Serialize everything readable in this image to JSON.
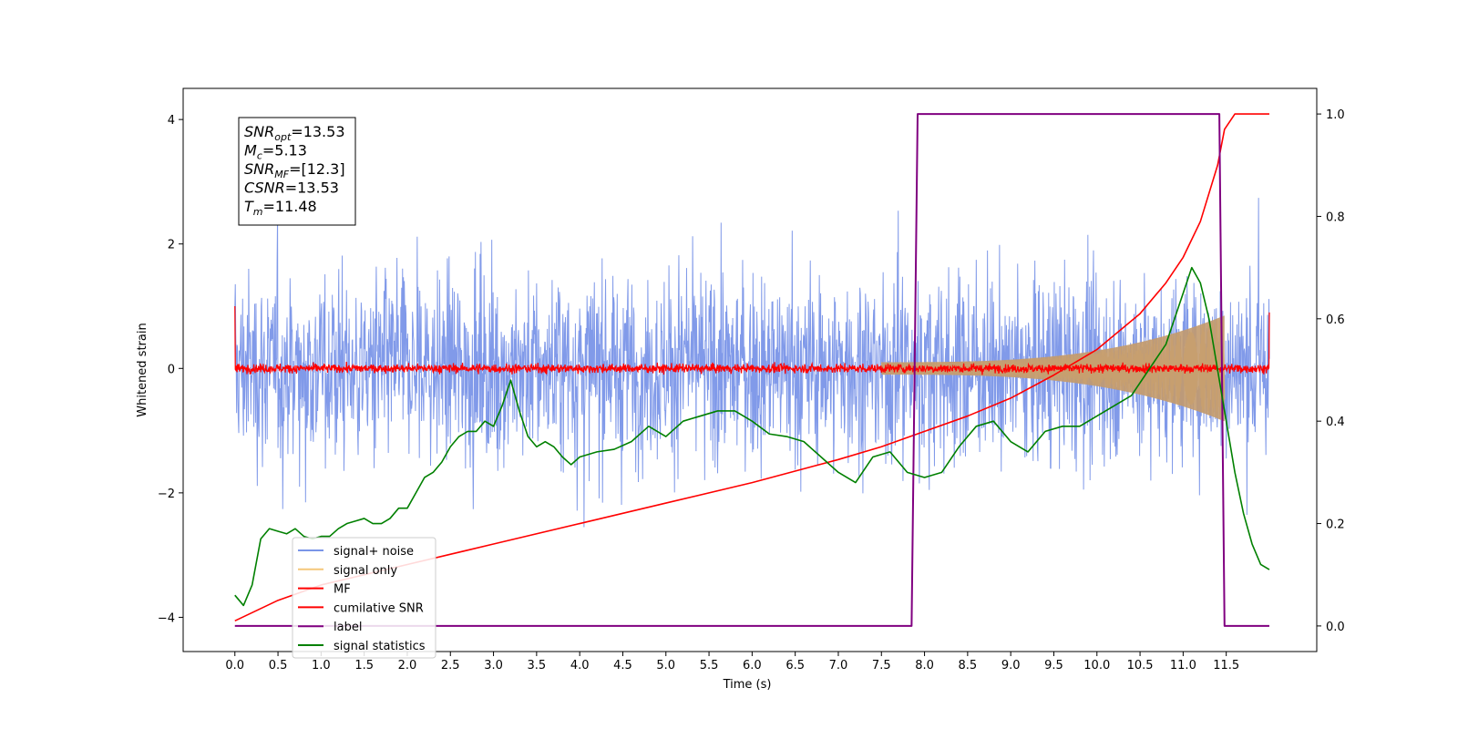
{
  "chart_data": {
    "type": "line",
    "title": "",
    "xlabel": "Time (s)",
    "ylabel": "Whitened strain",
    "xlim": [
      -0.6,
      12.55
    ],
    "ylim": [
      -4.55,
      4.5
    ],
    "y2lim": [
      -0.05,
      1.05
    ],
    "x_ticks": [
      "0.0",
      "0.5",
      "1.0",
      "1.5",
      "2.0",
      "2.5",
      "3.0",
      "3.5",
      "4.0",
      "4.5",
      "5.0",
      "5.5",
      "6.0",
      "6.5",
      "7.0",
      "7.5",
      "8.0",
      "8.5",
      "9.0",
      "9.5",
      "10.0",
      "10.5",
      "11.0",
      "11.5"
    ],
    "y_ticks": [
      "4",
      "2",
      "0",
      "−2",
      "−4"
    ],
    "y2_ticks": [
      "1.0",
      "0.8",
      "0.6",
      "0.4",
      "0.2",
      "0.0"
    ],
    "grid": false,
    "legend_position": "lower-left",
    "info_box": {
      "lines": [
        {
          "sym": "SNR",
          "sub": "opt",
          "value": "=13.53"
        },
        {
          "sym": "M",
          "sub": "c",
          "value": "=5.13"
        },
        {
          "sym": "SNR",
          "sub": "MF",
          "value": "=[12.3]"
        },
        {
          "sym": "CSNR",
          "sub": "",
          "value": "=13.53"
        },
        {
          "sym": "T",
          "sub": "m",
          "value": "=11.48"
        }
      ]
    },
    "series": [
      {
        "name": "signal+ noise",
        "color": "#7a95e8",
        "axis": "left",
        "kind": "noise",
        "x_range": [
          0.0,
          12.0
        ],
        "amplitude_range": [
          -4.1,
          4.1
        ]
      },
      {
        "name": "signal only",
        "color": "#f5c77a",
        "axis": "left",
        "kind": "chirp",
        "x_range": [
          7.5,
          11.48
        ],
        "envelope_start": 0.1,
        "envelope_end": 0.85
      },
      {
        "name": "MF",
        "color": "#ff0000",
        "axis": "left",
        "kind": "noise",
        "x_range": [
          0.0,
          12.0
        ],
        "amplitude_range": [
          -0.15,
          0.15
        ]
      },
      {
        "name": "cumilative SNR",
        "color": "#ff0000",
        "axis": "right",
        "x": [
          0.0,
          0.5,
          1.0,
          1.5,
          2.0,
          3.0,
          4.0,
          5.0,
          6.0,
          7.0,
          7.5,
          8.0,
          8.5,
          9.0,
          9.5,
          10.0,
          10.5,
          10.8,
          11.0,
          11.2,
          11.4,
          11.48,
          11.6,
          12.0
        ],
        "y": [
          0.01,
          0.05,
          0.08,
          0.1,
          0.12,
          0.16,
          0.2,
          0.24,
          0.28,
          0.325,
          0.35,
          0.38,
          0.41,
          0.445,
          0.49,
          0.54,
          0.61,
          0.67,
          0.72,
          0.79,
          0.9,
          0.97,
          1.0,
          1.0
        ]
      },
      {
        "name": "label",
        "color": "#800080",
        "axis": "right",
        "x": [
          0.0,
          7.85,
          7.92,
          11.42,
          11.48,
          12.0
        ],
        "y": [
          0.0,
          0.0,
          1.0,
          1.0,
          0.0,
          0.0
        ]
      },
      {
        "name": "signal statistics",
        "color": "#008000",
        "axis": "right",
        "x": [
          0.0,
          0.1,
          0.2,
          0.3,
          0.4,
          0.5,
          0.6,
          0.7,
          0.8,
          0.9,
          1.0,
          1.1,
          1.2,
          1.3,
          1.4,
          1.5,
          1.6,
          1.7,
          1.8,
          1.9,
          2.0,
          2.1,
          2.2,
          2.3,
          2.4,
          2.5,
          2.6,
          2.7,
          2.8,
          2.9,
          3.0,
          3.1,
          3.2,
          3.3,
          3.4,
          3.5,
          3.6,
          3.7,
          3.8,
          3.9,
          4.0,
          4.2,
          4.4,
          4.6,
          4.8,
          5.0,
          5.2,
          5.4,
          5.6,
          5.8,
          6.0,
          6.2,
          6.4,
          6.6,
          6.8,
          7.0,
          7.2,
          7.4,
          7.6,
          7.8,
          8.0,
          8.2,
          8.4,
          8.6,
          8.8,
          9.0,
          9.2,
          9.4,
          9.6,
          9.8,
          10.0,
          10.2,
          10.4,
          10.6,
          10.8,
          11.0,
          11.1,
          11.2,
          11.3,
          11.4,
          11.5,
          11.6,
          11.7,
          11.8,
          11.9,
          12.0
        ],
        "y": [
          0.06,
          0.04,
          0.08,
          0.17,
          0.19,
          0.185,
          0.18,
          0.19,
          0.175,
          0.17,
          0.175,
          0.175,
          0.19,
          0.2,
          0.205,
          0.21,
          0.2,
          0.2,
          0.21,
          0.23,
          0.23,
          0.26,
          0.29,
          0.3,
          0.32,
          0.35,
          0.37,
          0.38,
          0.38,
          0.4,
          0.39,
          0.43,
          0.48,
          0.42,
          0.37,
          0.35,
          0.36,
          0.35,
          0.33,
          0.315,
          0.33,
          0.34,
          0.345,
          0.36,
          0.39,
          0.37,
          0.4,
          0.41,
          0.42,
          0.42,
          0.4,
          0.375,
          0.37,
          0.36,
          0.33,
          0.3,
          0.28,
          0.33,
          0.34,
          0.3,
          0.29,
          0.3,
          0.35,
          0.39,
          0.4,
          0.36,
          0.34,
          0.38,
          0.39,
          0.39,
          0.41,
          0.43,
          0.45,
          0.5,
          0.55,
          0.65,
          0.7,
          0.67,
          0.6,
          0.5,
          0.4,
          0.3,
          0.22,
          0.16,
          0.12,
          0.11
        ]
      }
    ]
  }
}
